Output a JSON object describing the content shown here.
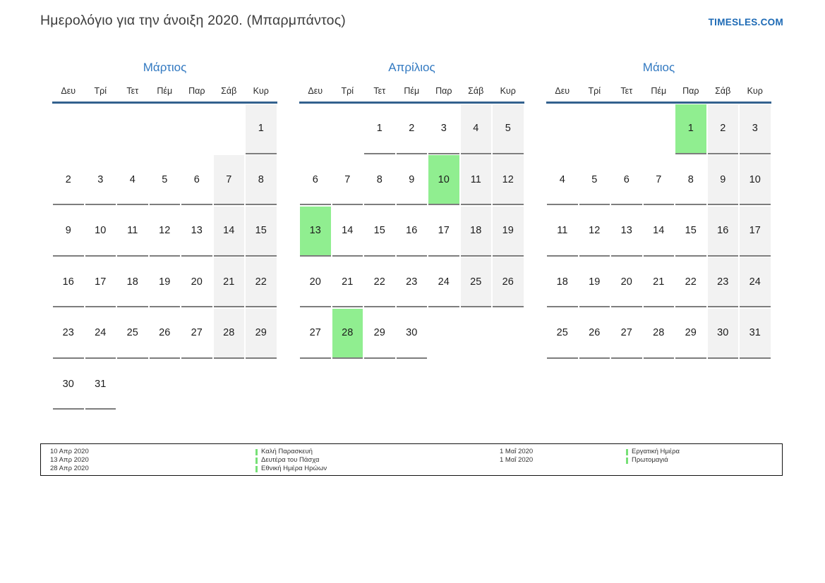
{
  "page": {
    "title": "Ημερολόγιο για την άνοιξη 2020. (Μπαρμπάντος)",
    "brand": "TIMESLES.COM"
  },
  "colors": {
    "accent_blue": "#3279c1",
    "header_rule_blue": "#33618e",
    "holiday_green": "#90ee90",
    "weekend_gray": "#f2f2f2",
    "underline_gray": "#7d7d7d",
    "brand_blue": "#1d6ab5",
    "legend_bar_green": "#77e077"
  },
  "calendar": {
    "day_headers": [
      "Δευ",
      "Τρί",
      "Τετ",
      "Πέμ",
      "Παρ",
      "Σάβ",
      "Κυρ"
    ],
    "months": [
      {
        "name": "Μάρτιος",
        "holidays": [],
        "weeks": [
          [
            null,
            null,
            null,
            null,
            null,
            null,
            1
          ],
          [
            2,
            3,
            4,
            5,
            6,
            7,
            8
          ],
          [
            9,
            10,
            11,
            12,
            13,
            14,
            15
          ],
          [
            16,
            17,
            18,
            19,
            20,
            21,
            22
          ],
          [
            23,
            24,
            25,
            26,
            27,
            28,
            29
          ],
          [
            30,
            31,
            null,
            null,
            null,
            null,
            null
          ]
        ]
      },
      {
        "name": "Απρίλιος",
        "holidays": [
          10,
          13,
          28
        ],
        "weeks": [
          [
            null,
            null,
            1,
            2,
            3,
            4,
            5
          ],
          [
            6,
            7,
            8,
            9,
            10,
            11,
            12
          ],
          [
            13,
            14,
            15,
            16,
            17,
            18,
            19
          ],
          [
            20,
            21,
            22,
            23,
            24,
            25,
            26
          ],
          [
            27,
            28,
            29,
            30,
            null,
            null,
            null
          ]
        ]
      },
      {
        "name": "Μάιος",
        "holidays": [
          1
        ],
        "weeks": [
          [
            null,
            null,
            null,
            null,
            1,
            2,
            3
          ],
          [
            4,
            5,
            6,
            7,
            8,
            9,
            10
          ],
          [
            11,
            12,
            13,
            14,
            15,
            16,
            17
          ],
          [
            18,
            19,
            20,
            21,
            22,
            23,
            24
          ],
          [
            25,
            26,
            27,
            28,
            29,
            30,
            31
          ]
        ]
      }
    ]
  },
  "legend": {
    "groups": [
      {
        "dates": [
          "10 Απρ 2020",
          "13 Απρ 2020",
          "28 Απρ 2020"
        ],
        "names": [
          "Καλή Παρασκευή",
          "Δευτέρα του Πάσχα",
          "Εθνική Ημέρα Ηρώων"
        ]
      },
      {
        "dates": [
          "1 Μαΐ 2020",
          "1 Μαΐ 2020"
        ],
        "names": [
          "Εργατική Ημέρα",
          "Πρωτομαγιά"
        ]
      }
    ]
  }
}
